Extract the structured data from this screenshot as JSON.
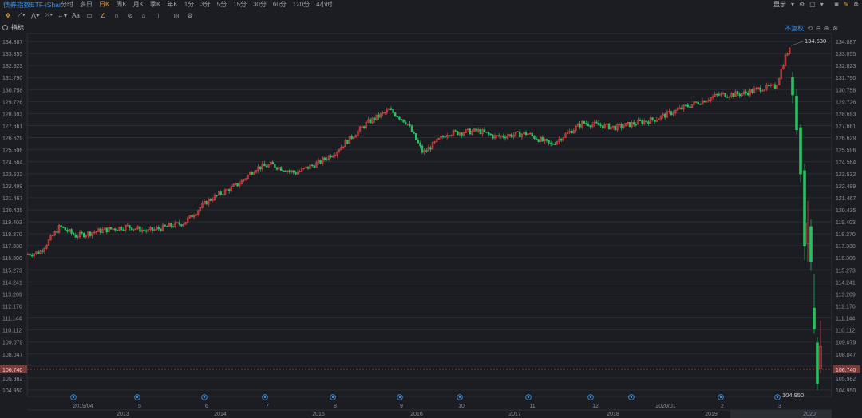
{
  "header": {
    "title": "债券指数ETF-iShares...",
    "periods": [
      "分时",
      "多日",
      "日K",
      "周K",
      "月K",
      "季K",
      "年K",
      "1分",
      "3分",
      "5分",
      "15分",
      "30分",
      "60分",
      "120分",
      "4小时"
    ],
    "active_period": "日K",
    "display_label": "显示",
    "icons": [
      "settings-icon",
      "window-icon",
      "camera-icon",
      "pencil-icon",
      "close-icon"
    ]
  },
  "toolbar": {
    "icons": [
      "crosshair-icon",
      "line-draw-icon",
      "polyline-icon",
      "cross-line-icon",
      "arrow-icon",
      "text-icon",
      "screenshot-icon",
      "pen-icon",
      "magnet-icon",
      "eraser-icon",
      "lock-icon",
      "delete-icon",
      "eye-icon",
      "settings-icon"
    ]
  },
  "indicator": {
    "label": "指标",
    "mode": "不复权"
  },
  "chart_data": {
    "type": "candlestick",
    "y_ticks": [
      "134.887",
      "133.855",
      "132.823",
      "131.790",
      "130.758",
      "129.726",
      "128.693",
      "127.661",
      "126.629",
      "125.596",
      "124.564",
      "123.532",
      "122.499",
      "121.467",
      "120.435",
      "119.403",
      "118.370",
      "117.338",
      "116.306",
      "115.273",
      "114.241",
      "113.209",
      "112.176",
      "111.144",
      "110.112",
      "109.079",
      "108.047",
      "107.015",
      "105.982",
      "104.950"
    ],
    "ylim": [
      104.95,
      134.887
    ],
    "high_label": "134.530",
    "low_label": "104.950",
    "current_price": "106.740",
    "month_labels": [
      "2019/04",
      "5",
      "6",
      "7",
      "8",
      "9",
      "10",
      "11",
      "12",
      "2020/01",
      "2",
      "3"
    ],
    "year_labels": [
      "2013",
      "2014",
      "2015",
      "2016",
      "2017",
      "2018",
      "2019",
      "2020"
    ],
    "up_color": "#e04747",
    "down_color": "#28c060"
  }
}
